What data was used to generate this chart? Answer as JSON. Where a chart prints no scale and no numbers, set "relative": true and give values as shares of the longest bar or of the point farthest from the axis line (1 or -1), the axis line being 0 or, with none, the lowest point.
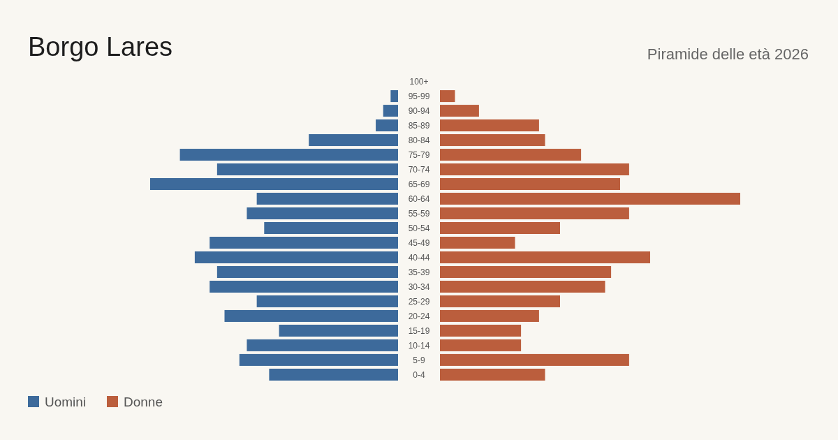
{
  "chart_data": [
    {
      "type": "bar",
      "orientation": "horizontal",
      "relative": true,
      "title": "Borgo Lares",
      "legend": "bottom left",
      "categories": [
        "100+",
        "95-99",
        "90-94",
        "85-89",
        "80-84",
        "75-79",
        "70-74",
        "65-69",
        "60-64",
        "55-59",
        "50-54",
        "45-49",
        "40-44",
        "35-39",
        "30-34",
        "25-29",
        "20-24",
        "15-19",
        "10-14",
        "5-9",
        "0-4"
      ],
      "series": [
        {
          "name": "Uomini",
          "color": "#3d6a9b",
          "values": [
            0,
            -0.03,
            -0.06,
            -0.09,
            -0.36,
            -0.88,
            -0.73,
            -1,
            -0.57,
            -0.61,
            -0.54,
            -0.76,
            -0.82,
            -0.73,
            -0.76,
            -0.57,
            -0.7,
            -0.48,
            -0.61,
            -0.64,
            -0.52
          ]
        }
      ]
    },
    {
      "type": "bar",
      "orientation": "horizontal",
      "relative": true,
      "subtitle": "Piramide delle età 2026",
      "legend": "bottom left",
      "categories": [
        null,
        null,
        null,
        null,
        null,
        null,
        null,
        null,
        null,
        null,
        null,
        null,
        null,
        null,
        null,
        null,
        null,
        null,
        null,
        null,
        null
      ],
      "series": [
        {
          "name": "Donne",
          "color": "#bb5e3d",
          "values": [
            0,
            0.05,
            0.13,
            0.33,
            0.35,
            0.47,
            0.63,
            0.6,
            1,
            0.63,
            0.4,
            0.25,
            0.7,
            0.57,
            0.55,
            0.4,
            0.33,
            0.27,
            0.27,
            0.63,
            0.35
          ]
        }
      ]
    }
  ]
}
